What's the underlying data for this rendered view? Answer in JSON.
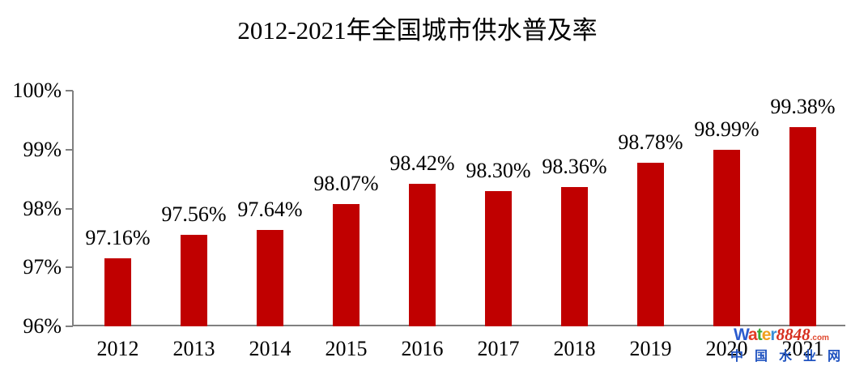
{
  "colors": {
    "bar": "#c00000",
    "axis": "#808080",
    "text": "#000000"
  },
  "chart_data": {
    "type": "bar",
    "title": "2012-2021年全国城市供水普及率",
    "categories": [
      "2012",
      "2013",
      "2014",
      "2015",
      "2016",
      "2017",
      "2018",
      "2019",
      "2020",
      "2021"
    ],
    "values": [
      97.16,
      97.56,
      97.64,
      98.07,
      98.42,
      98.3,
      98.36,
      98.78,
      98.99,
      99.38
    ],
    "labels": [
      "97.16%",
      "97.56%",
      "97.64%",
      "98.07%",
      "98.42%",
      "98.30%",
      "98.36%",
      "98.78%",
      "98.99%",
      "99.38%"
    ],
    "xlabel": "",
    "ylabel": "",
    "ylim": [
      96,
      100
    ],
    "ytick_values": [
      100,
      99,
      98,
      97,
      96
    ],
    "ytick_labels": [
      "100%",
      "99%",
      "98%",
      "97%",
      "96%"
    ],
    "grid": false,
    "legend": null,
    "bar_color": "#c00000"
  },
  "watermark": {
    "brand_letters": [
      {
        "ch": "W",
        "color": "#2a5bce"
      },
      {
        "ch": "a",
        "color": "#e23a24"
      },
      {
        "ch": "t",
        "color": "#3aa634"
      },
      {
        "ch": "e",
        "color": "#f0a01e"
      },
      {
        "ch": "r",
        "color": "#3b8fd8"
      }
    ],
    "brand_number": "8848",
    "brand_tld": ".com",
    "subtitle": "中国水业网"
  }
}
